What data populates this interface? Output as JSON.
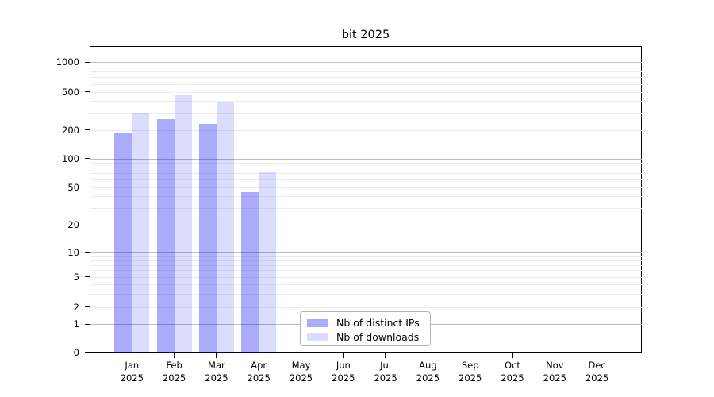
{
  "figure": {
    "title": "bit 2025"
  },
  "legend": {
    "items": [
      {
        "label": "Nb of distinct IPs",
        "color": "rgba(10,8,244,0.34)"
      },
      {
        "label": "Nb of downloads",
        "color": "rgba(10,8,244,0.14)"
      }
    ]
  },
  "chart_data": {
    "type": "bar",
    "title": "bit 2025",
    "categories": [
      "Jan 2025",
      "Feb 2025",
      "Mar 2025",
      "Apr 2025",
      "May 2025",
      "Jun 2025",
      "Jul 2025",
      "Aug 2025",
      "Sep 2025",
      "Oct 2025",
      "Nov 2025",
      "Dec 2025"
    ],
    "series": [
      {
        "name": "Nb of distinct IPs",
        "color": "rgba(10,8,244,0.34)",
        "values": [
          182,
          260,
          230,
          44,
          null,
          null,
          null,
          null,
          null,
          null,
          null,
          null
        ]
      },
      {
        "name": "Nb of downloads",
        "color": "rgba(10,8,244,0.14)",
        "values": [
          300,
          460,
          390,
          73,
          null,
          null,
          null,
          null,
          null,
          null,
          null,
          null
        ]
      }
    ],
    "xlabel": "",
    "ylabel": "",
    "yscale": "symlog",
    "yticks": [
      0,
      1,
      2,
      5,
      10,
      20,
      50,
      100,
      200,
      500,
      1000
    ],
    "ylim": [
      0,
      1500
    ],
    "grid": "horizontal, major and minor",
    "legend_position": "lower center"
  }
}
